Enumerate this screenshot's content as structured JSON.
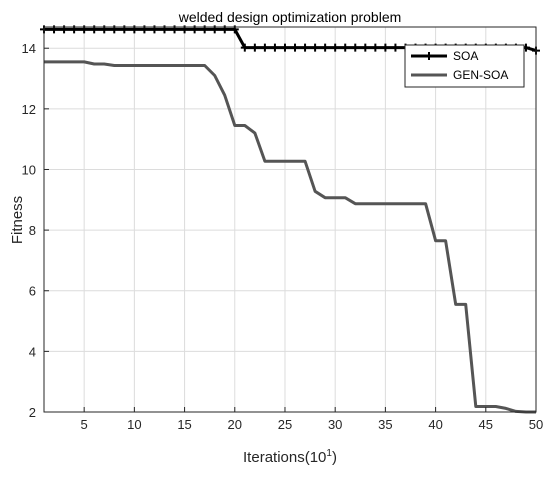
{
  "chart_data": {
    "type": "line",
    "title": "welded design optimization problem",
    "xlabel_base": "Iterations(10",
    "xlabel_exp": "1",
    "xlabel_close": ")",
    "ylabel": "Fitness",
    "xlim": [
      1,
      50
    ],
    "ylim": [
      2,
      14.7
    ],
    "xticks": [
      5,
      10,
      15,
      20,
      25,
      30,
      35,
      40,
      45,
      50
    ],
    "yticks": [
      2,
      4,
      6,
      8,
      10,
      12,
      14
    ],
    "grid": true,
    "legend_position": "top-right",
    "series": [
      {
        "name": "SOA",
        "color": "#000000",
        "marker": "plus",
        "x": [
          1,
          2,
          3,
          4,
          5,
          6,
          7,
          8,
          9,
          10,
          11,
          12,
          13,
          14,
          15,
          16,
          17,
          18,
          19,
          20,
          21,
          22,
          23,
          24,
          25,
          26,
          27,
          28,
          29,
          30,
          31,
          32,
          33,
          34,
          35,
          36,
          37,
          38,
          39,
          40,
          41,
          42,
          43,
          44,
          45,
          46,
          47,
          48,
          49,
          50
        ],
        "values": [
          14.62,
          14.62,
          14.62,
          14.62,
          14.62,
          14.62,
          14.62,
          14.62,
          14.62,
          14.62,
          14.62,
          14.62,
          14.62,
          14.62,
          14.62,
          14.62,
          14.62,
          14.62,
          14.62,
          14.62,
          14.02,
          14.02,
          14.02,
          14.02,
          14.02,
          14.02,
          14.02,
          14.02,
          14.02,
          14.02,
          14.02,
          14.02,
          14.02,
          14.02,
          14.02,
          14.02,
          14.02,
          14.02,
          14.02,
          14.02,
          14.02,
          14.02,
          14.02,
          14.02,
          14.02,
          14.02,
          14.02,
          14.02,
          14.02,
          13.92
        ]
      },
      {
        "name": "GEN-SOA",
        "color": "#555555",
        "marker": "none",
        "x": [
          1,
          2,
          3,
          4,
          5,
          6,
          7,
          8,
          9,
          10,
          11,
          12,
          13,
          14,
          15,
          16,
          17,
          18,
          19,
          20,
          21,
          22,
          23,
          24,
          25,
          26,
          27,
          28,
          29,
          30,
          31,
          32,
          33,
          34,
          35,
          36,
          37,
          38,
          39,
          40,
          41,
          42,
          43,
          44,
          45,
          46,
          47,
          48,
          49,
          50
        ],
        "values": [
          13.55,
          13.55,
          13.55,
          13.55,
          13.55,
          13.48,
          13.48,
          13.43,
          13.43,
          13.43,
          13.43,
          13.43,
          13.43,
          13.43,
          13.43,
          13.43,
          13.43,
          13.1,
          12.45,
          11.45,
          11.45,
          11.2,
          10.27,
          10.27,
          10.27,
          10.27,
          10.27,
          9.28,
          9.07,
          9.07,
          9.07,
          8.87,
          8.87,
          8.87,
          8.87,
          8.87,
          8.87,
          8.87,
          8.87,
          7.65,
          7.65,
          5.55,
          5.55,
          2.18,
          2.18,
          2.18,
          2.12,
          2.02,
          2.0,
          2.0
        ]
      }
    ]
  }
}
